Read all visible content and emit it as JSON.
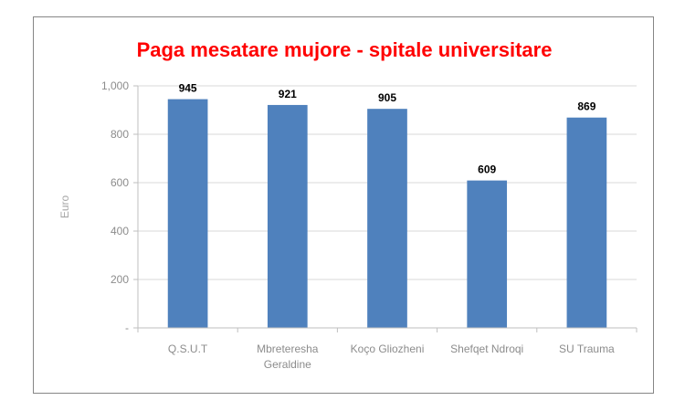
{
  "chart_data": {
    "type": "bar",
    "title": "Paga mesatare mujore - spitale universitare",
    "xlabel": "",
    "ylabel": "Euro",
    "categories": [
      "Q.S.U.T",
      "Mbreteresha Geraldine",
      "Koço Gliozheni",
      "Shefqet Ndroqi",
      "SU Trauma"
    ],
    "category_lines": [
      [
        "Q.S.U.T"
      ],
      [
        "Mbreteresha",
        "Geraldine"
      ],
      [
        "Koço Gliozheni"
      ],
      [
        "Shefqet Ndroqi"
      ],
      [
        "SU Trauma"
      ]
    ],
    "values": [
      945,
      921,
      905,
      609,
      869
    ],
    "ylim": [
      0,
      1000
    ],
    "yticks": [
      0,
      200,
      400,
      600,
      800,
      1000
    ],
    "ytick_labels": [
      "-",
      "200",
      "400",
      "600",
      "800",
      "1,000"
    ],
    "grid": true,
    "legend": "none",
    "bar_color": "#4f81bd",
    "title_color": "#ff0000"
  }
}
